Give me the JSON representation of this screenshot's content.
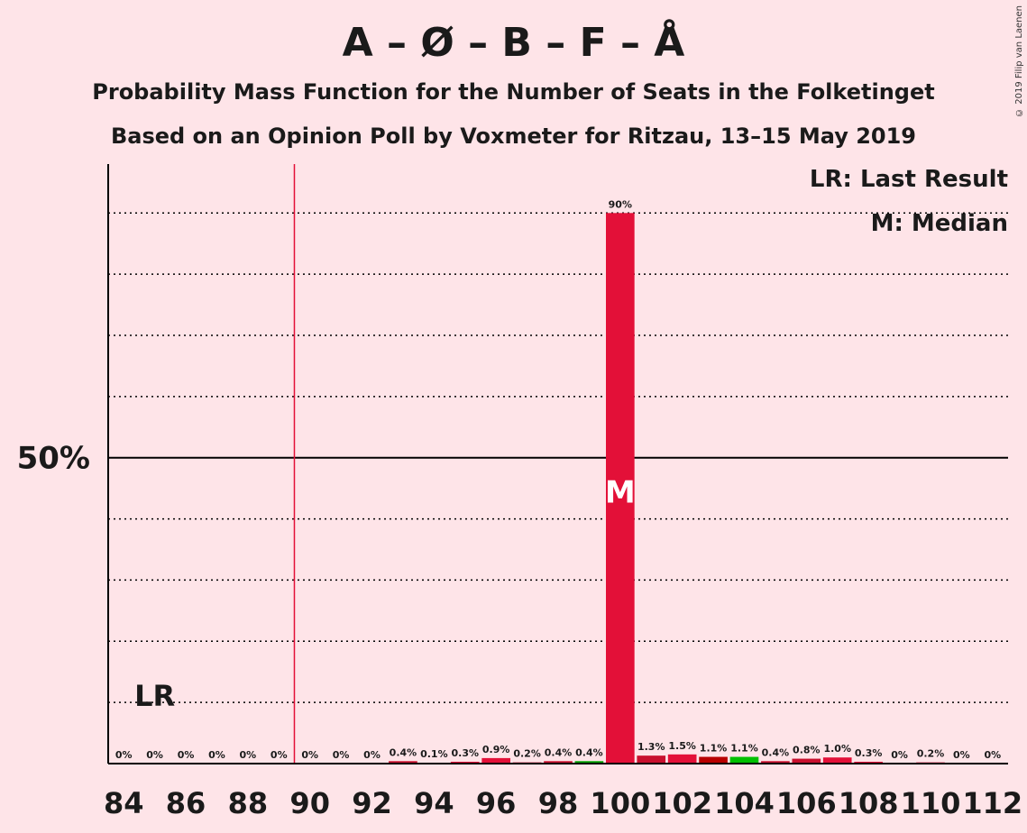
{
  "header": {
    "title": "A – Ø – B – F – Å",
    "subtitle": "Probability Mass Function for the Number of Seats in the Folketinget",
    "subtitle2": "Based on an Opinion Poll by Voxmeter for Ritzau, 13–15 May 2019",
    "copyright": "© 2019 Filip van Laenen"
  },
  "legend": {
    "lr": "LR: Last Result",
    "m": "M: Median"
  },
  "chart_data": {
    "type": "bar",
    "x": [
      84,
      85,
      86,
      87,
      88,
      89,
      90,
      91,
      92,
      93,
      94,
      95,
      96,
      97,
      98,
      99,
      100,
      101,
      102,
      103,
      104,
      105,
      106,
      107,
      108,
      109,
      110,
      111,
      112
    ],
    "values": [
      0,
      0,
      0,
      0,
      0,
      0,
      0,
      0,
      0,
      0.4,
      0.1,
      0.3,
      0.9,
      0.2,
      0.4,
      0.4,
      90,
      1.3,
      1.5,
      1.1,
      1.1,
      0.4,
      0.8,
      1.0,
      0.3,
      0,
      0.2,
      0,
      0
    ],
    "labels": [
      "0%",
      "0%",
      "0%",
      "0%",
      "0%",
      "0%",
      "0%",
      "0%",
      "0%",
      "0.4%",
      "0.1%",
      "0.3%",
      "0.9%",
      "0.2%",
      "0.4%",
      "0.4%",
      "90%",
      "1.3%",
      "1.5%",
      "1.1%",
      "1.1%",
      "0.4%",
      "0.8%",
      "1.0%",
      "0.3%",
      "0%",
      "0.2%",
      "0%",
      "0%"
    ],
    "colors": [
      "#e31038",
      "#e31038",
      "#e31038",
      "#e31038",
      "#e31038",
      "#e31038",
      "#e31038",
      "#e31038",
      "#e31038",
      "#c8102e",
      "#c8102e",
      "#e31038",
      "#e31038",
      "#c8102e",
      "#c8102e",
      "#00a300",
      "#e31038",
      "#c8102e",
      "#e31038",
      "#b80000",
      "#00c000",
      "#c8102e",
      "#c8102e",
      "#e31038",
      "#e31038",
      "#e31038",
      "#e31038",
      "#e31038",
      "#e31038"
    ],
    "xticks": [
      84,
      86,
      88,
      90,
      92,
      94,
      96,
      98,
      100,
      102,
      104,
      106,
      108,
      110,
      112
    ],
    "ylabel_tick": "50%",
    "ylabel_tick_value": 50,
    "ylim": [
      0,
      98
    ],
    "last_result": 89.5,
    "last_result_label": "LR",
    "median": 100,
    "median_label": "M",
    "gridlines": [
      10,
      20,
      30,
      40,
      60,
      70,
      80,
      90
    ]
  }
}
